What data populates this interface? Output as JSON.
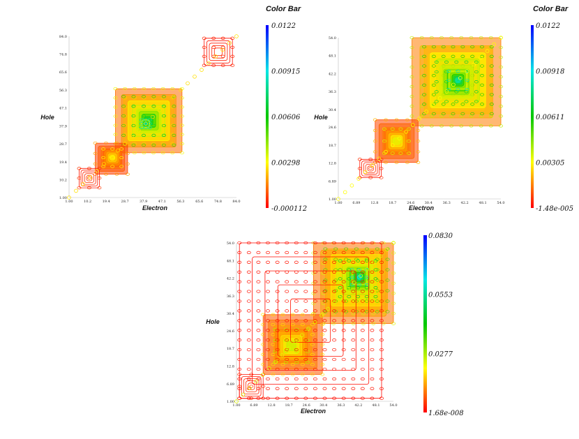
{
  "chart_data": [
    {
      "type": "heatmap",
      "xlabel": "Electron",
      "ylabel": "Hole",
      "x_ticks": [
        "1.00",
        "10.2",
        "19.4",
        "28.7",
        "37.9",
        "47.1",
        "56.3",
        "65.6",
        "74.8",
        "84.0"
      ],
      "y_ticks": [
        "1.00",
        "10.2",
        "19.4",
        "28.7",
        "37.9",
        "47.1",
        "56.3",
        "65.6",
        "74.8",
        "84.0"
      ],
      "colorbar": {
        "title": "Color Bar",
        "labels": [
          "0.0122",
          "0.00915",
          "0.00606",
          "0.00298",
          "-0.000112"
        ]
      },
      "regions": [
        {
          "x": [
            24,
            57
          ],
          "y": [
            24,
            57
          ],
          "level": 0.3
        },
        {
          "x": [
            28,
            53
          ],
          "y": [
            28,
            53
          ],
          "level": 0.5
        },
        {
          "x": [
            33,
            48
          ],
          "y": [
            33,
            48
          ],
          "level": 0.62
        },
        {
          "x": [
            37,
            41
          ],
          "y": [
            37,
            41
          ],
          "level": 0.78
        },
        {
          "x": [
            14,
            30
          ],
          "y": [
            13,
            29
          ],
          "level": 0.18
        },
        {
          "x": [
            18,
            27
          ],
          "y": [
            17,
            26
          ],
          "level": 0.28
        },
        {
          "x": [
            6,
            16
          ],
          "y": [
            6,
            16
          ],
          "level": 0.06
        },
        {
          "x": [
            68,
            82
          ],
          "y": [
            69,
            83
          ],
          "level": 0.04
        }
      ],
      "diagonal_level": 0.22
    },
    {
      "type": "heatmap",
      "xlabel": "Electron",
      "ylabel": "Hole",
      "x_ticks": [
        "1.00",
        "6.89",
        "12.8",
        "18.7",
        "24.6",
        "30.4",
        "36.3",
        "42.2",
        "48.1",
        "54.0"
      ],
      "y_ticks": [
        "1.00",
        "6.89",
        "12.8",
        "18.7",
        "24.6",
        "30.4",
        "36.3",
        "42.2",
        "48.1",
        "54.0"
      ],
      "colorbar": {
        "title": "Color Bar",
        "labels": [
          "0.0122",
          "0.00918",
          "0.00611",
          "0.00305",
          "-1.48e-005"
        ]
      },
      "regions": [
        {
          "x": [
            25,
            54
          ],
          "y": [
            25,
            54
          ],
          "level": 0.35
        },
        {
          "x": [
            29,
            51
          ],
          "y": [
            29,
            51
          ],
          "level": 0.52
        },
        {
          "x": [
            33,
            46
          ],
          "y": [
            33,
            46
          ],
          "level": 0.62
        },
        {
          "x": [
            37,
            43
          ],
          "y": [
            37,
            43
          ],
          "level": 0.8
        },
        {
          "x": [
            13,
            27
          ],
          "y": [
            13,
            27
          ],
          "level": 0.2
        },
        {
          "x": [
            16,
            24
          ],
          "y": [
            16,
            24
          ],
          "level": 0.32
        },
        {
          "x": [
            8,
            15
          ],
          "y": [
            8,
            14
          ],
          "level": 0.05
        }
      ],
      "diagonal_level": 0.25
    },
    {
      "type": "heatmap",
      "xlabel": "Electron",
      "ylabel": "Hole",
      "x_ticks": [
        "1.00",
        "6.89",
        "12.8",
        "18.7",
        "24.6",
        "30.4",
        "36.3",
        "42.2",
        "48.1",
        "54.0"
      ],
      "y_ticks": [
        "1.00",
        "6.89",
        "12.8",
        "18.7",
        "24.6",
        "30.4",
        "36.3",
        "42.2",
        "48.1",
        "54.0"
      ],
      "colorbar": {
        "title": "",
        "labels": [
          "0.0830",
          "0.0553",
          "0.0277",
          "1.68e-008"
        ]
      },
      "regions": [
        {
          "x": [
            27,
            54
          ],
          "y": [
            27,
            54
          ],
          "level": 0.32
        },
        {
          "x": [
            31,
            52
          ],
          "y": [
            31,
            52
          ],
          "level": 0.48
        },
        {
          "x": [
            36,
            48
          ],
          "y": [
            36,
            48
          ],
          "level": 0.6
        },
        {
          "x": [
            40,
            45
          ],
          "y": [
            40,
            45
          ],
          "level": 0.85
        },
        {
          "x": [
            10,
            30
          ],
          "y": [
            10,
            30
          ],
          "level": 0.25
        },
        {
          "x": [
            14,
            25
          ],
          "y": [
            14,
            25
          ],
          "level": 0.36
        },
        {
          "x": [
            2,
            10
          ],
          "y": [
            2,
            10
          ],
          "level": 0.05
        },
        {
          "x": [
            2,
            50
          ],
          "y": [
            2,
            54
          ],
          "level": 0.02
        }
      ],
      "diagonal_level": 0.28
    }
  ]
}
